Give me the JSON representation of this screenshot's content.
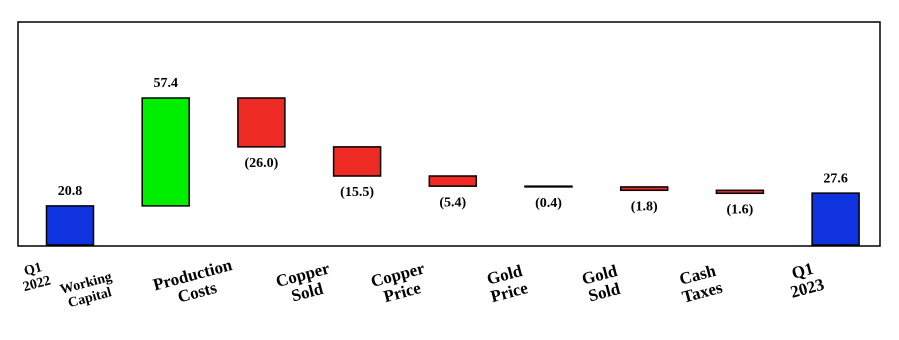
{
  "chart_data": {
    "type": "waterfall",
    "categories": [
      "Q1 2022",
      "Working Capital",
      "Production Costs",
      "Copper Sold",
      "Copper Price",
      "Gold Price",
      "Gold Sold",
      "Cash Taxes",
      "Q1 2023"
    ],
    "values": [
      20.8,
      57.4,
      -26.0,
      -15.5,
      -5.4,
      -0.4,
      -1.8,
      -1.6,
      27.6
    ],
    "value_labels": [
      "20.8",
      "57.4",
      "(26.0)",
      "(15.5)",
      "(5.4)",
      "(0.4)",
      "(1.8)",
      "(1.6)",
      "27.6"
    ],
    "colors": [
      "#1033e0",
      "#00ee00",
      "#ee2a24",
      "#ee2a24",
      "#ee2a24",
      "#ee2a24",
      "#ee2a24",
      "#ee2a24",
      "#1033e0"
    ]
  }
}
